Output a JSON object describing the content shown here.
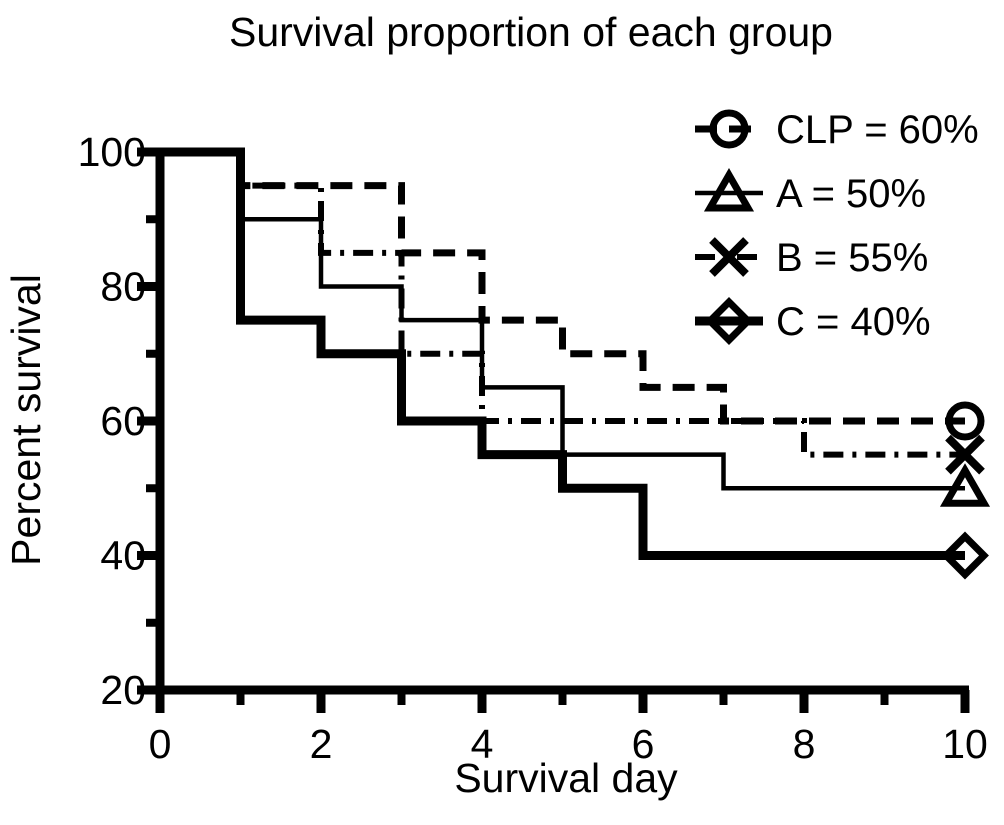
{
  "figure": {
    "background": "#ffffff",
    "foreground": "#000000"
  },
  "chart_data": {
    "type": "line",
    "subtype": "kaplan-meier-survival-step",
    "title": "Survival proportion of each group",
    "xlabel": "Survival day",
    "ylabel": "Percent survival",
    "xlim": [
      0,
      10
    ],
    "ylim": [
      20,
      100
    ],
    "x_major_ticks": [
      0,
      2,
      4,
      6,
      8,
      10
    ],
    "x_minor_ticks": [
      1,
      3,
      5,
      7,
      9
    ],
    "y_major_ticks": [
      100,
      80,
      60,
      40,
      20
    ],
    "y_minor_ticks": [
      90,
      70,
      50,
      30
    ],
    "grid": false,
    "legend_position": "top-right",
    "series": [
      {
        "name": "B",
        "legend_label": "B = 55%",
        "final_percent": 55,
        "marker": "x",
        "line_style": "dash-dot",
        "line_width": 6,
        "steps": [
          [
            0,
            100
          ],
          [
            1,
            95
          ],
          [
            2,
            85
          ],
          [
            3,
            70
          ],
          [
            4,
            60
          ],
          [
            8,
            55
          ],
          [
            10,
            55
          ]
        ]
      },
      {
        "name": "CLP",
        "legend_label": "CLP = 60%",
        "final_percent": 60,
        "marker": "circle",
        "line_style": "dashed",
        "line_width": 7,
        "steps": [
          [
            0,
            100
          ],
          [
            1,
            95
          ],
          [
            3,
            85
          ],
          [
            4,
            75
          ],
          [
            5,
            70
          ],
          [
            6,
            65
          ],
          [
            7,
            60
          ],
          [
            10,
            60
          ]
        ]
      },
      {
        "name": "A",
        "legend_label": "A = 50%",
        "final_percent": 50,
        "marker": "triangle",
        "line_style": "solid",
        "line_width": 4.5,
        "steps": [
          [
            0,
            100
          ],
          [
            1,
            90
          ],
          [
            2,
            80
          ],
          [
            3,
            75
          ],
          [
            4,
            65
          ],
          [
            5,
            55
          ],
          [
            7,
            50
          ],
          [
            10,
            50
          ]
        ]
      },
      {
        "name": "C",
        "legend_label": "C = 40%",
        "final_percent": 40,
        "marker": "diamond",
        "line_style": "solid",
        "line_width": 9,
        "steps": [
          [
            0,
            100
          ],
          [
            1,
            75
          ],
          [
            2,
            70
          ],
          [
            3,
            60
          ],
          [
            4,
            55
          ],
          [
            5,
            50
          ],
          [
            6,
            40
          ],
          [
            10,
            40
          ]
        ]
      }
    ],
    "legend_order": [
      "CLP",
      "A",
      "B",
      "C"
    ]
  }
}
